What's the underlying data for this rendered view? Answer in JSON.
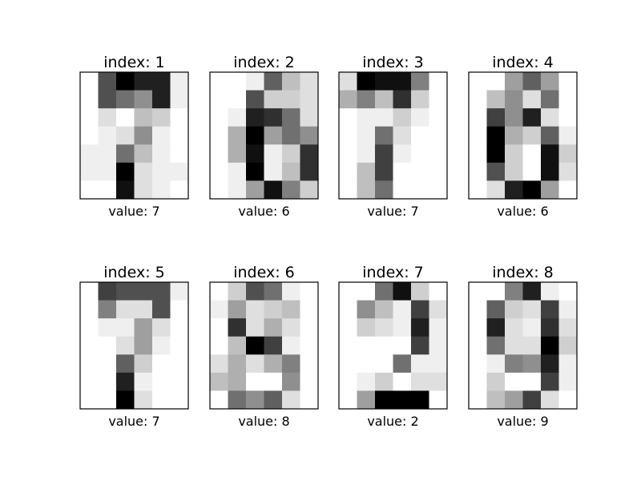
{
  "chart_data": {
    "type": "heatmap",
    "colormap": "gray_r",
    "value_range": [
      0,
      16
    ],
    "grid": false,
    "panels": [
      {
        "title": "index: 1",
        "label": "value: 7",
        "grid": [
          [
            0,
            11,
            16,
            14,
            14,
            1
          ],
          [
            0,
            11,
            9,
            7,
            14,
            1
          ],
          [
            0,
            2,
            0,
            4,
            3,
            0
          ],
          [
            0,
            1,
            2,
            7,
            1,
            0
          ],
          [
            1,
            1,
            9,
            4,
            1,
            0
          ],
          [
            1,
            1,
            16,
            2,
            1,
            1
          ],
          [
            0,
            0,
            15,
            2,
            1,
            0
          ]
        ]
      },
      {
        "title": "index: 2",
        "label": "value: 6",
        "grid": [
          [
            0,
            0,
            1,
            10,
            4,
            2
          ],
          [
            0,
            0,
            11,
            3,
            3,
            2
          ],
          [
            0,
            1,
            14,
            13,
            9,
            2
          ],
          [
            0,
            5,
            16,
            6,
            9,
            7
          ],
          [
            0,
            5,
            15,
            1,
            3,
            13
          ],
          [
            0,
            1,
            16,
            1,
            4,
            13
          ],
          [
            0,
            1,
            6,
            15,
            8,
            3
          ]
        ]
      },
      {
        "title": "index: 3",
        "label": "value: 7",
        "grid": [
          [
            2,
            16,
            15,
            15,
            8,
            0
          ],
          [
            5,
            8,
            4,
            13,
            3,
            0
          ],
          [
            0,
            1,
            1,
            3,
            1,
            0
          ],
          [
            0,
            1,
            9,
            2,
            0,
            0
          ],
          [
            0,
            1,
            12,
            1,
            0,
            0
          ],
          [
            0,
            4,
            12,
            0,
            0,
            0
          ],
          [
            0,
            4,
            9,
            0,
            0,
            0
          ]
        ]
      },
      {
        "title": "index: 4",
        "label": "value: 6",
        "grid": [
          [
            0,
            0,
            6,
            10,
            6,
            0
          ],
          [
            0,
            4,
            7,
            2,
            9,
            0
          ],
          [
            0,
            12,
            7,
            14,
            2,
            0
          ],
          [
            0,
            16,
            5,
            3,
            10,
            1
          ],
          [
            0,
            16,
            3,
            0,
            15,
            3
          ],
          [
            0,
            11,
            3,
            0,
            15,
            2
          ],
          [
            0,
            2,
            14,
            16,
            6,
            0
          ]
        ]
      },
      {
        "title": "index: 5",
        "label": "value: 7",
        "grid": [
          [
            0,
            12,
            11,
            11,
            11,
            1
          ],
          [
            0,
            8,
            2,
            2,
            11,
            0
          ],
          [
            0,
            1,
            1,
            6,
            2,
            0
          ],
          [
            0,
            0,
            2,
            6,
            1,
            0
          ],
          [
            0,
            0,
            10,
            3,
            0,
            0
          ],
          [
            0,
            0,
            14,
            1,
            0,
            0
          ],
          [
            0,
            0,
            16,
            2,
            0,
            0
          ]
        ]
      },
      {
        "title": "index: 6",
        "label": "value: 8",
        "grid": [
          [
            0,
            3,
            11,
            9,
            1,
            0
          ],
          [
            1,
            6,
            2,
            3,
            4,
            0
          ],
          [
            0,
            13,
            2,
            5,
            2,
            0
          ],
          [
            0,
            4,
            16,
            12,
            1,
            0
          ],
          [
            2,
            5,
            2,
            5,
            8,
            0
          ],
          [
            4,
            5,
            0,
            0,
            7,
            0
          ],
          [
            0,
            9,
            7,
            10,
            2,
            0
          ]
        ]
      },
      {
        "title": "index: 7",
        "label": "value: 2",
        "grid": [
          [
            0,
            0,
            9,
            15,
            3,
            0
          ],
          [
            0,
            7,
            4,
            1,
            12,
            2
          ],
          [
            0,
            3,
            2,
            1,
            14,
            1
          ],
          [
            0,
            0,
            0,
            0,
            12,
            1
          ],
          [
            0,
            0,
            0,
            9,
            1,
            1
          ],
          [
            0,
            1,
            3,
            0,
            2,
            2
          ],
          [
            0,
            6,
            16,
            16,
            16,
            0
          ]
        ]
      },
      {
        "title": "index: 8",
        "label": "value: 9",
        "grid": [
          [
            0,
            0,
            8,
            14,
            1,
            0
          ],
          [
            0,
            10,
            3,
            2,
            12,
            1
          ],
          [
            0,
            14,
            2,
            1,
            13,
            2
          ],
          [
            0,
            9,
            2,
            2,
            16,
            3
          ],
          [
            0,
            1,
            8,
            7,
            14,
            1
          ],
          [
            0,
            3,
            0,
            0,
            12,
            1
          ],
          [
            0,
            4,
            6,
            12,
            2,
            0
          ]
        ]
      }
    ]
  }
}
